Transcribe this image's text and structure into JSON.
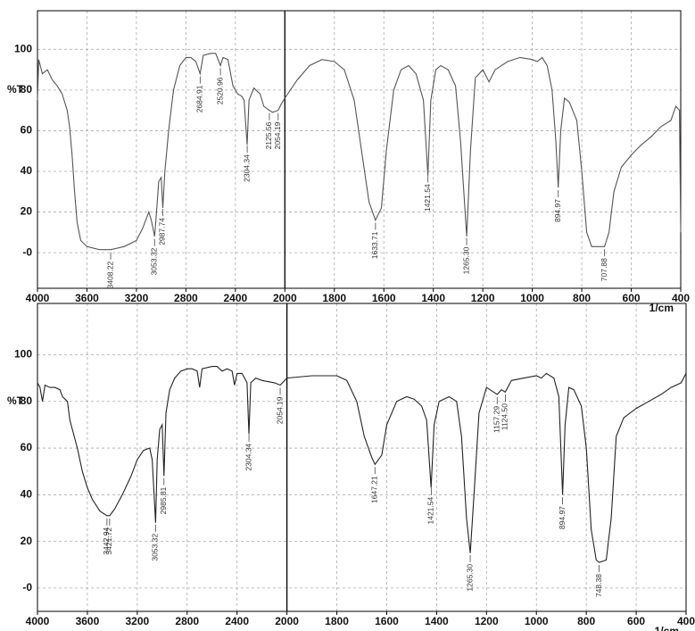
{
  "chart_data": [
    {
      "type": "line",
      "x_label": "1/cm",
      "y_label": "%T",
      "xlim": [
        4000,
        400
      ],
      "xticks": [
        4000,
        3600,
        3200,
        2800,
        2400,
        2000,
        1800,
        1600,
        1400,
        1200,
        1000,
        800,
        600,
        400
      ],
      "ylim": [
        -17.5,
        119
      ],
      "yticks": [
        {
          "value": 0,
          "label": "-0"
        },
        20,
        40,
        60,
        80,
        100
      ],
      "grid": true,
      "series": [
        {
          "color": "#555555",
          "x": [
            4000,
            3990,
            3960,
            3920,
            3880,
            3840,
            3800,
            3760,
            3740,
            3720,
            3700,
            3680,
            3650,
            3600,
            3500,
            3408,
            3300,
            3200,
            3150,
            3100,
            3080,
            3053,
            3040,
            3020,
            3000,
            2987,
            2970,
            2940,
            2900,
            2850,
            2800,
            2760,
            2720,
            2685,
            2660,
            2600,
            2560,
            2521,
            2500,
            2460,
            2420,
            2380,
            2350,
            2330,
            2305,
            2290,
            2250,
            2200,
            2170,
            2126,
            2100,
            2054,
            2030,
            2000,
            1950,
            1900,
            1850,
            1800,
            1760,
            1720,
            1690,
            1660,
            1634,
            1610,
            1590,
            1560,
            1530,
            1500,
            1470,
            1440,
            1422,
            1410,
            1390,
            1370,
            1340,
            1310,
            1290,
            1265,
            1250,
            1230,
            1200,
            1175,
            1150,
            1100,
            1050,
            1000,
            980,
            960,
            940,
            920,
            905,
            895,
            885,
            870,
            850,
            820,
            800,
            780,
            760,
            708,
            690,
            670,
            640,
            600,
            560,
            520,
            480,
            440,
            420,
            405,
            400
          ],
          "values": [
            75,
            95,
            88,
            90,
            85,
            82,
            78,
            70,
            62,
            48,
            30,
            15,
            6,
            3,
            1.5,
            1.5,
            3,
            6,
            12,
            20,
            16,
            8,
            18,
            35,
            37,
            22,
            40,
            60,
            80,
            92,
            96,
            96,
            94,
            88,
            97,
            98,
            98,
            92,
            96,
            95,
            82,
            78,
            77,
            75,
            53,
            75,
            81,
            78,
            72,
            70,
            69,
            70,
            73,
            76,
            85,
            92,
            95,
            94,
            90,
            75,
            50,
            25,
            16,
            22,
            50,
            80,
            90,
            92,
            88,
            75,
            38,
            75,
            90,
            92,
            90,
            82,
            55,
            8,
            50,
            86,
            90,
            84,
            90,
            94,
            96,
            95,
            94,
            96,
            92,
            80,
            55,
            32,
            60,
            76,
            74,
            65,
            40,
            10,
            3,
            3,
            10,
            30,
            42,
            48,
            53,
            57,
            62,
            65,
            72,
            70,
            10
          ]
        }
      ],
      "peaks": [
        3408.22,
        3053.32,
        2987.74,
        2684.91,
        2520.96,
        2304.34,
        2125.56,
        2054.19,
        1633.71,
        1421.54,
        {
          "value": 1265.3,
          "label": "1265.30"
        },
        894.97,
        707.88
      ]
    },
    {
      "type": "line",
      "x_label": "1/cm",
      "y_label": "%T",
      "xlim": [
        4000,
        400
      ],
      "xticks": [
        4000,
        3600,
        3200,
        2800,
        2400,
        2000,
        1800,
        1600,
        1400,
        1200,
        1000,
        800,
        600,
        400
      ],
      "ylim": [
        -10,
        122
      ],
      "yticks": [
        {
          "value": 0,
          "label": "-0"
        },
        20,
        40,
        60,
        80,
        100
      ],
      "grid": true,
      "series": [
        {
          "color": "#222222",
          "x": [
            4000,
            3980,
            3960,
            3940,
            3900,
            3860,
            3820,
            3800,
            3760,
            3740,
            3720,
            3680,
            3640,
            3600,
            3560,
            3500,
            3443,
            3421,
            3380,
            3320,
            3250,
            3200,
            3150,
            3100,
            3080,
            3053,
            3040,
            3020,
            3000,
            2986,
            2970,
            2940,
            2900,
            2850,
            2800,
            2760,
            2720,
            2700,
            2680,
            2600,
            2560,
            2520,
            2480,
            2440,
            2420,
            2400,
            2360,
            2320,
            2305,
            2290,
            2250,
            2200,
            2100,
            2054,
            2000,
            1900,
            1800,
            1760,
            1720,
            1690,
            1660,
            1647,
            1620,
            1600,
            1560,
            1520,
            1490,
            1460,
            1440,
            1422,
            1410,
            1390,
            1350,
            1320,
            1300,
            1280,
            1265,
            1250,
            1230,
            1200,
            1157,
            1140,
            1125,
            1100,
            1050,
            1000,
            980,
            960,
            930,
            910,
            895,
            885,
            870,
            850,
            820,
            800,
            780,
            760,
            748,
            720,
            700,
            680,
            650,
            600,
            550,
            500,
            460,
            420,
            400
          ],
          "values": [
            88,
            86,
            80,
            87,
            86,
            86,
            85,
            82,
            80,
            72,
            68,
            60,
            50,
            43,
            38,
            33,
            31,
            31,
            34,
            40,
            48,
            55,
            59,
            60,
            55,
            28,
            55,
            68,
            70,
            48,
            75,
            85,
            90,
            93,
            94,
            94,
            93,
            86,
            94,
            95,
            95,
            93,
            94,
            93,
            87,
            92,
            92,
            88,
            66,
            88,
            90,
            89,
            88,
            87,
            90,
            91,
            91,
            89,
            80,
            65,
            56,
            53,
            57,
            70,
            80,
            82,
            81,
            78,
            72,
            43,
            70,
            80,
            82,
            80,
            65,
            30,
            15,
            40,
            75,
            86,
            83,
            85,
            84,
            89,
            90,
            91,
            90,
            92,
            90,
            82,
            40,
            70,
            86,
            85,
            78,
            60,
            25,
            12,
            11,
            12,
            30,
            65,
            73,
            77,
            80,
            83,
            86,
            88,
            92
          ]
        }
      ],
      "peaks": [
        3442.94,
        3421.72,
        3053.32,
        2985.81,
        2304.34,
        2054.19,
        1647.21,
        1421.54,
        {
          "value": 1265.3,
          "label": "1265.30"
        },
        1157.29,
        {
          "value": 1124.5,
          "label": "1124.50"
        },
        894.97,
        748.38
      ]
    }
  ]
}
